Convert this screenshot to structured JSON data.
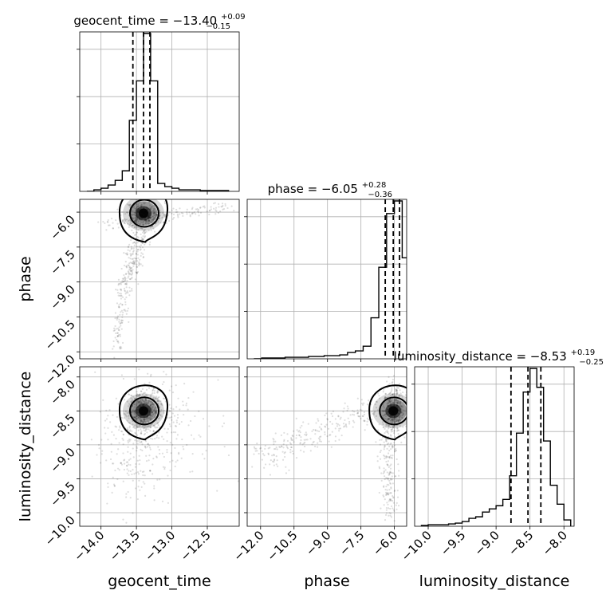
{
  "figure": {
    "type": "corner-plot",
    "parameters": [
      "geocent_time",
      "phase",
      "luminosity_distance"
    ],
    "titles": [
      {
        "label": "geocent_time = −13.40",
        "sup": "+0.09",
        "sub": "−0.15"
      },
      {
        "label": "phase = −6.05",
        "sup": "+0.28",
        "sub": "−0.36"
      },
      {
        "label": "luminosity_distance = −8.53",
        "sup": "+0.19",
        "sub": "−0.25"
      }
    ],
    "axis_labels": {
      "x": [
        "geocent_time",
        "phase",
        "luminosity_distance"
      ],
      "y": [
        "phase",
        "luminosity_distance"
      ]
    }
  },
  "chart_data": [
    {
      "type": "histogram",
      "parameter": "geocent_time",
      "xlim": [
        -14.3,
        -12.05
      ],
      "xticks": [
        -14.0,
        -13.5,
        -13.0,
        -12.5
      ],
      "xtick_labels": [
        "−14.0",
        "−13.5",
        "−13.0",
        "−12.5"
      ],
      "bin_edges": [
        -14.2,
        -14.1,
        -14.0,
        -13.9,
        -13.8,
        -13.7,
        -13.6,
        -13.5,
        -13.4,
        -13.3,
        -13.2,
        -13.1,
        -13.0,
        -12.9,
        -12.8,
        -12.7,
        -12.6,
        -12.5,
        -12.4,
        -12.3,
        -12.2
      ],
      "counts": [
        0.0,
        0.01,
        0.02,
        0.04,
        0.07,
        0.13,
        0.45,
        0.7,
        1.0,
        0.7,
        0.05,
        0.03,
        0.02,
        0.01,
        0.01,
        0.01,
        0.005,
        0.005,
        0.005,
        0.005
      ],
      "quantiles": [
        -13.55,
        -13.4,
        -13.31
      ],
      "grid": true
    },
    {
      "type": "histogram",
      "parameter": "phase",
      "xlim": [
        -12.6,
        -5.45
      ],
      "xticks": [
        -12.0,
        -10.5,
        -9.0,
        -7.5,
        -6.0
      ],
      "xtick_labels": [
        "−12.0",
        "−10.5",
        "−9.0",
        "−7.5",
        "−6.0"
      ],
      "bin_edges": [
        -12.3,
        -11.95,
        -11.6,
        -11.25,
        -10.9,
        -10.55,
        -10.2,
        -9.85,
        -9.5,
        -9.15,
        -8.8,
        -8.45,
        -8.1,
        -7.75,
        -7.4,
        -7.05,
        -6.7,
        -6.35,
        -6.0,
        -5.65,
        -5.3
      ],
      "counts": [
        0.0,
        0.005,
        0.005,
        0.005,
        0.01,
        0.01,
        0.01,
        0.015,
        0.015,
        0.02,
        0.02,
        0.025,
        0.04,
        0.05,
        0.08,
        0.26,
        0.58,
        0.92,
        1.0,
        0.64
      ],
      "quantiles": [
        -6.41,
        -6.05,
        -5.77
      ],
      "grid": true
    },
    {
      "type": "histogram",
      "parameter": "luminosity_distance",
      "xlim": [
        -10.2,
        -7.85
      ],
      "xticks": [
        -10.0,
        -9.5,
        -9.0,
        -8.5,
        -8.0
      ],
      "xtick_labels": [
        "−10.0",
        "−9.5",
        "−9.0",
        "−8.5",
        "−8.0"
      ],
      "bin_edges": [
        -10.1,
        -10.0,
        -9.9,
        -9.8,
        -9.7,
        -9.6,
        -9.5,
        -9.4,
        -9.3,
        -9.2,
        -9.1,
        -9.0,
        -8.9,
        -8.8,
        -8.7,
        -8.6,
        -8.5,
        -8.4,
        -8.3,
        -8.2,
        -8.1,
        -8.0,
        -7.9
      ],
      "counts": [
        0.005,
        0.01,
        0.01,
        0.01,
        0.015,
        0.02,
        0.03,
        0.05,
        0.06,
        0.09,
        0.11,
        0.13,
        0.17,
        0.32,
        0.59,
        0.85,
        1.0,
        0.88,
        0.54,
        0.26,
        0.14,
        0.04
      ],
      "quantiles": [
        -8.78,
        -8.53,
        -8.34
      ],
      "grid": true
    },
    {
      "type": "scatter-density",
      "x_parameter": "geocent_time",
      "y_parameter": "phase",
      "xlim": [
        -14.3,
        -12.05
      ],
      "ylim": [
        -12.3,
        -5.45
      ],
      "yticks": [
        -12.0,
        -10.5,
        -9.0,
        -7.5,
        -6.0
      ],
      "ytick_labels": [
        "−12.0",
        "−10.5",
        "−9.0",
        "−7.5",
        "−6.0"
      ],
      "peak": [
        -13.4,
        -6.05
      ],
      "grid": true
    },
    {
      "type": "scatter-density",
      "x_parameter": "geocent_time",
      "y_parameter": "luminosity_distance",
      "xlim": [
        -14.3,
        -12.05
      ],
      "ylim": [
        -10.2,
        -7.85
      ],
      "yticks": [
        -10.0,
        -9.5,
        -9.0,
        -8.5,
        -8.0
      ],
      "ytick_labels": [
        "−10.0",
        "−9.5",
        "−9.0",
        "−8.5",
        "−8.0"
      ],
      "peak": [
        -13.4,
        -8.5
      ],
      "grid": true
    },
    {
      "type": "scatter-density",
      "x_parameter": "phase",
      "y_parameter": "luminosity_distance",
      "xlim": [
        -12.6,
        -5.45
      ],
      "ylim": [
        -10.2,
        -7.85
      ],
      "peak": [
        -6.05,
        -8.5
      ],
      "grid": true
    }
  ]
}
